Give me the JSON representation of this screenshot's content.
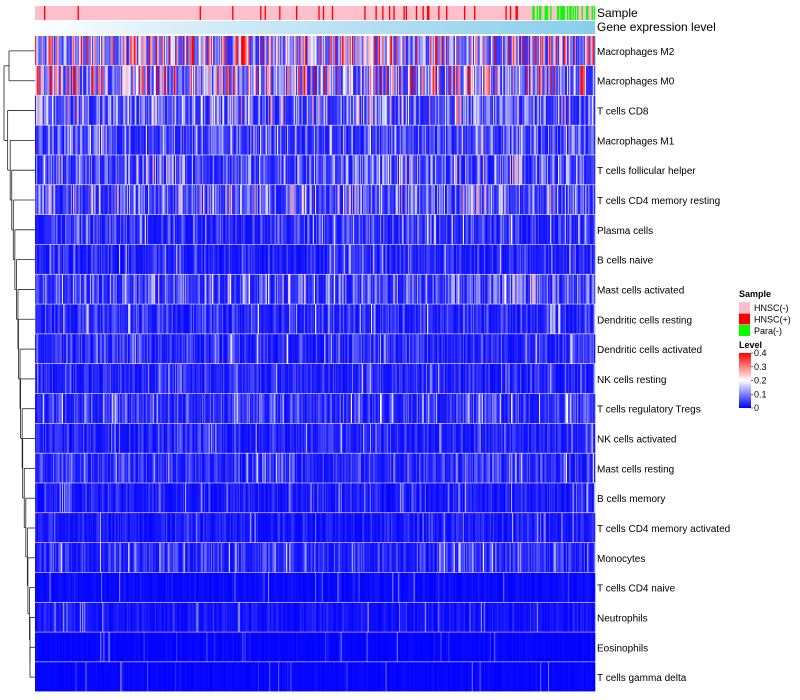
{
  "chart_data": {
    "type": "heatmap",
    "title": "",
    "annotations": [
      {
        "name": "Sample",
        "kind": "categorical"
      },
      {
        "name": "Gene expression level",
        "kind": "continuous"
      }
    ],
    "rows": [
      {
        "name": "Macrophages M2",
        "mean": 0.22
      },
      {
        "name": "Macrophages M0",
        "mean": 0.19
      },
      {
        "name": "T cells CD8",
        "mean": 0.11
      },
      {
        "name": "Macrophages M1",
        "mean": 0.08
      },
      {
        "name": "T cells follicular helper",
        "mean": 0.09
      },
      {
        "name": "T cells CD4 memory resting",
        "mean": 0.1
      },
      {
        "name": "Plasma cells",
        "mean": 0.06
      },
      {
        "name": "B cells naive",
        "mean": 0.04
      },
      {
        "name": "Mast cells activated",
        "mean": 0.08
      },
      {
        "name": "Dendritic cells resting",
        "mean": 0.05
      },
      {
        "name": "Dendritic cells activated",
        "mean": 0.05
      },
      {
        "name": "NK cells resting",
        "mean": 0.04
      },
      {
        "name": "T cells regulatory  Tregs",
        "mean": 0.06
      },
      {
        "name": "NK cells activated",
        "mean": 0.04
      },
      {
        "name": "Mast cells resting",
        "mean": 0.05
      },
      {
        "name": "B cells memory",
        "mean": 0.03
      },
      {
        "name": "T cells CD4 memory activated",
        "mean": 0.03
      },
      {
        "name": "Monocytes",
        "mean": 0.05
      },
      {
        "name": "T cells CD4 naive",
        "mean": 0.01
      },
      {
        "name": "Neutrophils",
        "mean": 0.02
      },
      {
        "name": "Eosinophils",
        "mean": 0.005
      },
      {
        "name": "T cells gamma delta",
        "mean": 0.005
      }
    ],
    "n_columns": 500,
    "sample_groups": [
      {
        "label": "HNSC(-)",
        "color": "#FFC0CB"
      },
      {
        "label": "HNSC(+)",
        "color": "#FF0000"
      },
      {
        "label": "Para(-)",
        "color": "#00FF00"
      }
    ],
    "sample_legend_title": "Sample",
    "level_legend": {
      "title": "Level",
      "ticks": [
        0.4,
        0.3,
        0.2,
        0.1,
        0
      ],
      "tick_labels": [
        "0.4",
        "0.3",
        "0.2",
        "0.1",
        "0"
      ],
      "range": [
        0,
        0.4
      ],
      "colors": [
        "#0000FF",
        "#FFFFFF",
        "#FF0000"
      ]
    },
    "expression_bar_colors": [
      "#FFFFFF",
      "#87CEEB"
    ]
  }
}
